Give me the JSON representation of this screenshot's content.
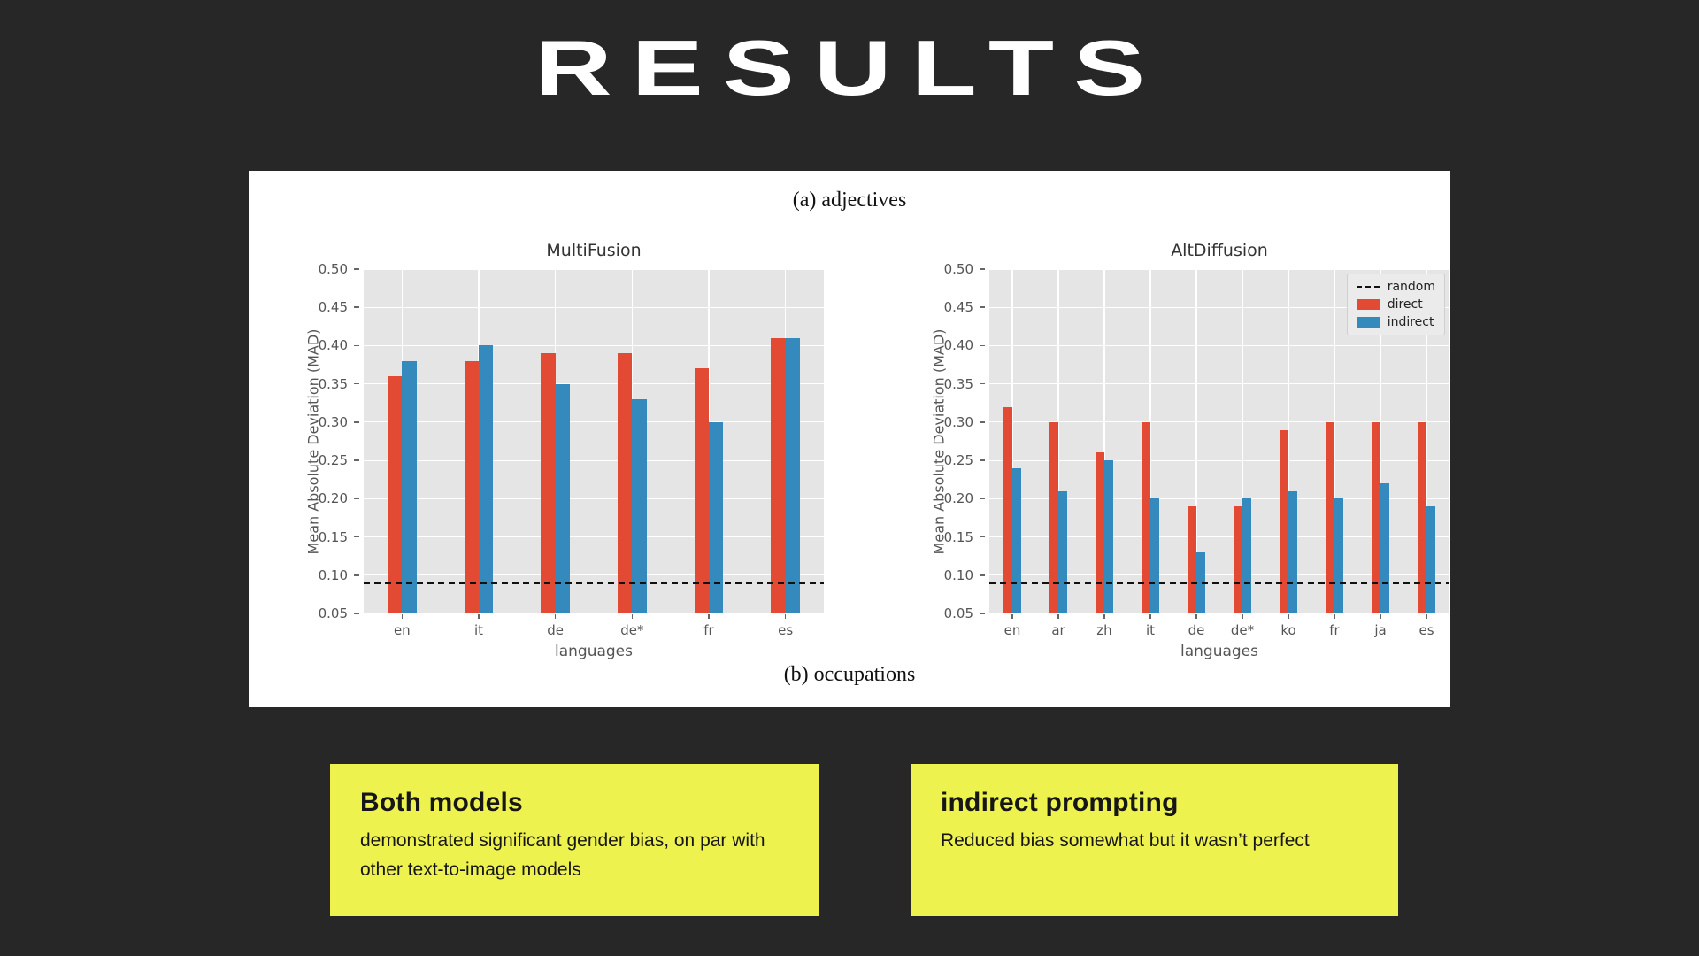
{
  "slide": {
    "title": "RESULTS",
    "background_color": "#272727",
    "panel_color": "#ffffff",
    "accent_yellow": "#eef24e"
  },
  "figure": {
    "caption_top": "(a) adjectives",
    "caption_bottom": "(b) occupations"
  },
  "chart_data": [
    {
      "type": "bar",
      "title": "MultiFusion",
      "xlabel": "languages",
      "ylabel": "Mean Absolute Deviation (MAD)",
      "ylim": [
        0.05,
        0.5
      ],
      "ytick_step": 0.05,
      "grid": true,
      "plot_background": "#e5e5e5",
      "categories": [
        "en",
        "it",
        "de",
        "de*",
        "fr",
        "es"
      ],
      "series": [
        {
          "name": "direct",
          "color": "#e24a33",
          "values": [
            0.36,
            0.38,
            0.39,
            0.39,
            0.37,
            0.41
          ]
        },
        {
          "name": "indirect",
          "color": "#348abd",
          "values": [
            0.38,
            0.4,
            0.35,
            0.33,
            0.3,
            0.41
          ]
        }
      ],
      "baseline": {
        "name": "random",
        "value": 0.09,
        "style": "dashed",
        "color": "#111111"
      },
      "legend": {
        "show": false,
        "entries": []
      }
    },
    {
      "type": "bar",
      "title": "AltDiffusion",
      "xlabel": "languages",
      "ylabel": "Mean Absolute Deviation (MAD)",
      "ylim": [
        0.05,
        0.5
      ],
      "ytick_step": 0.05,
      "grid": true,
      "plot_background": "#e5e5e5",
      "categories": [
        "en",
        "ar",
        "zh",
        "it",
        "de",
        "de*",
        "ko",
        "fr",
        "ja",
        "es"
      ],
      "series": [
        {
          "name": "direct",
          "color": "#e24a33",
          "values": [
            0.32,
            0.3,
            0.26,
            0.3,
            0.19,
            0.19,
            0.29,
            0.3,
            0.3,
            0.3
          ]
        },
        {
          "name": "indirect",
          "color": "#348abd",
          "values": [
            0.24,
            0.21,
            0.25,
            0.2,
            0.13,
            0.2,
            0.21,
            0.2,
            0.22,
            0.19
          ]
        }
      ],
      "baseline": {
        "name": "random",
        "value": 0.09,
        "style": "dashed",
        "color": "#111111"
      },
      "legend": {
        "show": true,
        "position": "upper right",
        "entries": [
          {
            "label": "random",
            "swatch": "dashed-line",
            "color": "#111111"
          },
          {
            "label": "direct",
            "swatch": "box",
            "color": "#e24a33"
          },
          {
            "label": "indirect",
            "swatch": "box",
            "color": "#348abd"
          }
        ]
      }
    }
  ],
  "callouts": [
    {
      "heading": "Both models",
      "body": "demonstrated significant gender bias, on par with other text-to-image models",
      "background": "#eef24e"
    },
    {
      "heading": "indirect prompting",
      "body": "Reduced bias somewhat but it wasn’t perfect",
      "background": "#eef24e"
    }
  ]
}
